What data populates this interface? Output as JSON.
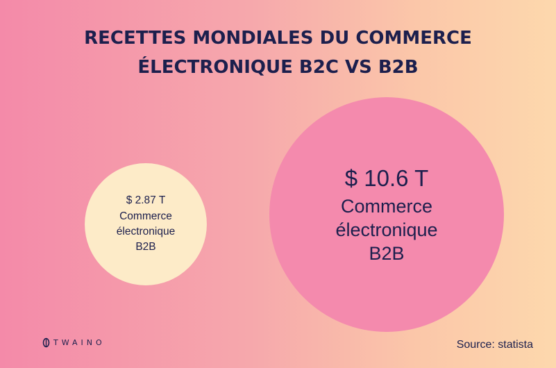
{
  "title_lines": [
    "RECETTES MONDIALES DU COMMERCE",
    "ÉLECTRONIQUE B2C VS B2B"
  ],
  "chart_data": {
    "type": "bubble",
    "title": "RECETTES MONDIALES DU COMMERCE ÉLECTRONIQUE B2C VS B2B",
    "unit": "T",
    "currency": "$",
    "bubbles": [
      {
        "value": 2.87,
        "value_label": "$ 2.87 T",
        "label_lines": [
          "Commerce",
          "électronique",
          "B2B"
        ],
        "color": "#fdebc8"
      },
      {
        "value": 10.6,
        "value_label": "$ 10.6 T",
        "label_lines": [
          "Commerce",
          "électronique",
          "B2B"
        ],
        "color": "#f48aad"
      }
    ]
  },
  "logo": {
    "text": "TWAINO",
    "icon": "leaf-logo-icon"
  },
  "source": "Source: statista",
  "colors": {
    "text": "#1c1f4d",
    "gradient_start": "#f48aa9",
    "gradient_end": "#fdd8ad"
  }
}
